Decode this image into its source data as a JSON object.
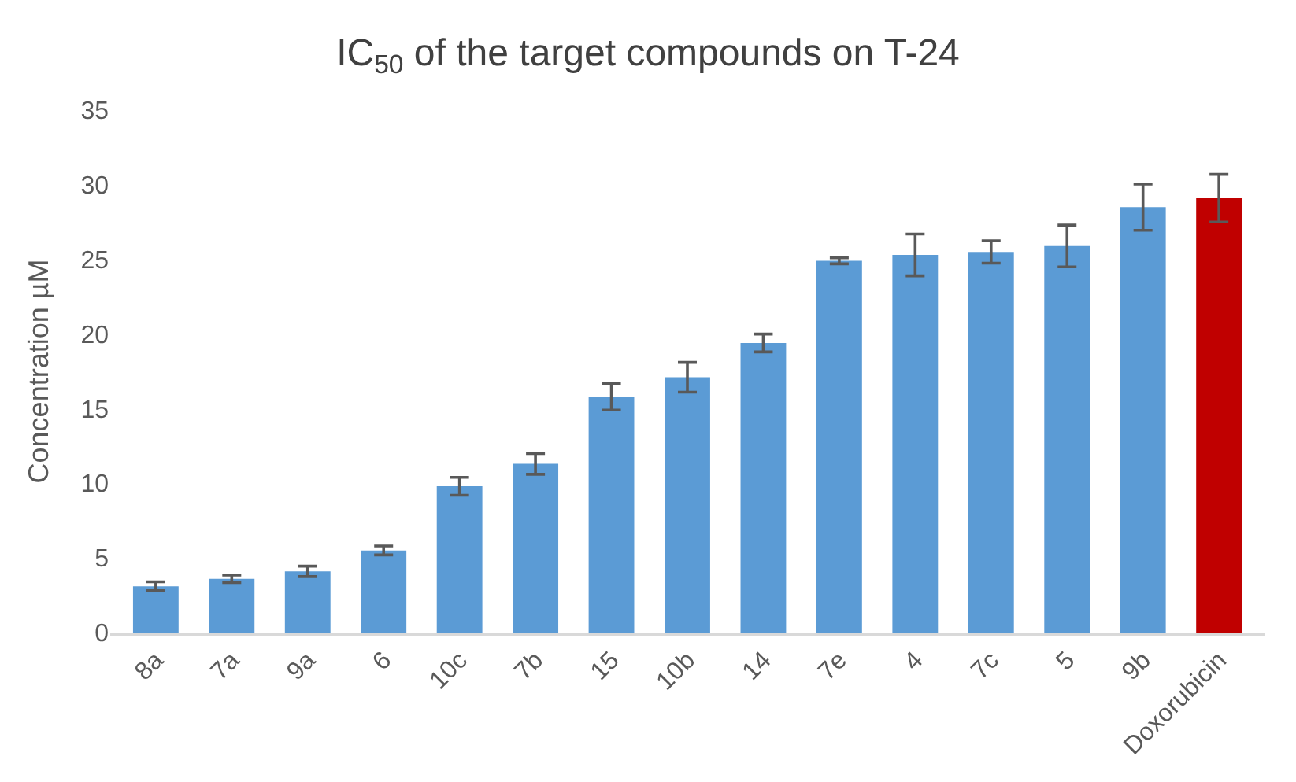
{
  "chart_data": {
    "type": "bar",
    "title": "IC$_{50}$ of the target compounds on T-24",
    "ylabel": "Concentration µM",
    "categories": [
      "8a",
      "7a",
      "9a",
      "6",
      "10c",
      "7b",
      "15",
      "10b",
      "14",
      "7e",
      "4",
      "7c",
      "5",
      "9b",
      "Doxorubicin"
    ],
    "values": [
      3.1,
      3.6,
      4.1,
      5.5,
      9.8,
      11.3,
      15.8,
      17.1,
      19.4,
      24.9,
      25.3,
      25.5,
      25.9,
      28.5,
      29.1
    ],
    "errors": [
      0.3,
      0.25,
      0.35,
      0.3,
      0.6,
      0.7,
      0.9,
      1.0,
      0.6,
      0.2,
      1.4,
      0.75,
      1.4,
      1.55,
      1.6
    ],
    "colors": [
      "#5b9bd5",
      "#5b9bd5",
      "#5b9bd5",
      "#5b9bd5",
      "#5b9bd5",
      "#5b9bd5",
      "#5b9bd5",
      "#5b9bd5",
      "#5b9bd5",
      "#5b9bd5",
      "#5b9bd5",
      "#5b9bd5",
      "#5b9bd5",
      "#5b9bd5",
      "#c00000"
    ],
    "ylim": [
      0,
      35
    ],
    "yticks": [
      0,
      5,
      10,
      15,
      20,
      25,
      30,
      35
    ],
    "grid": false
  }
}
